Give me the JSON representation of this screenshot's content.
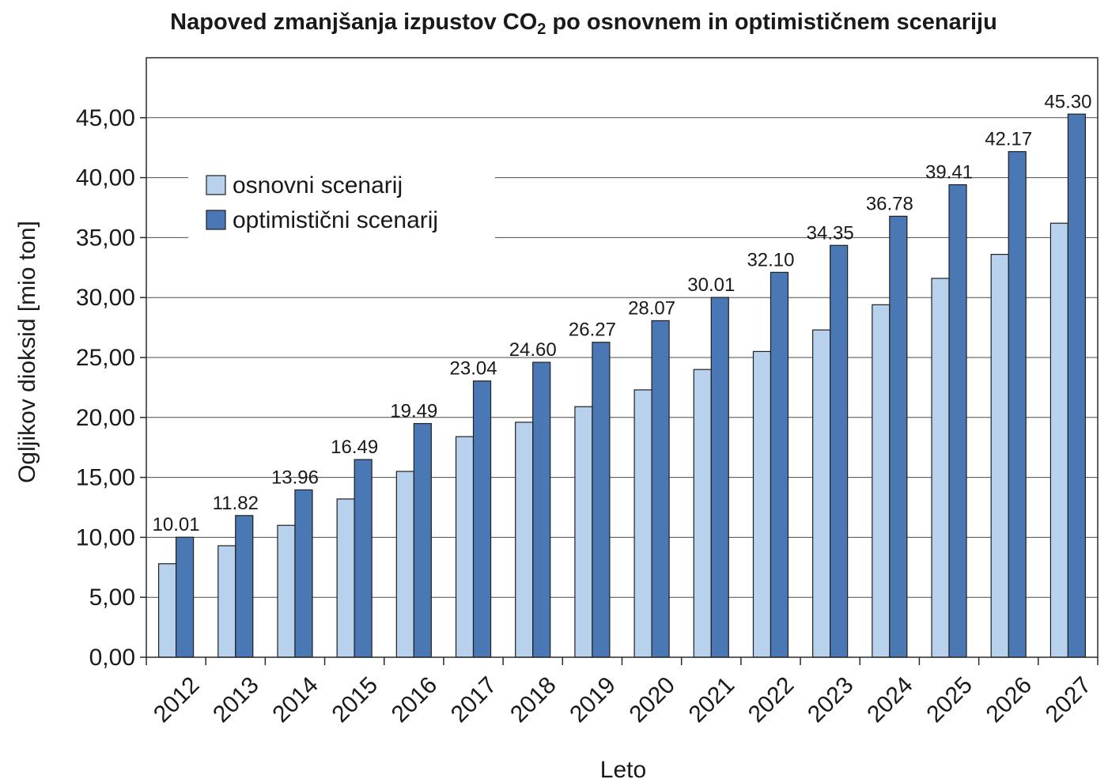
{
  "chart_data": {
    "type": "bar",
    "title_main": "Napoved zmanjšanja izpustov CO",
    "title_sub": "2",
    "title_rest": " po osnovnem in optimističnem scenariju",
    "xlabel": "Leto",
    "ylabel": "Ogljikov dioksid [mio ton]",
    "ylim": [
      0,
      50
    ],
    "ytick_values": [
      0,
      5,
      10,
      15,
      20,
      25,
      30,
      35,
      40,
      45
    ],
    "ytick_labels": [
      "0,00",
      "5,00",
      "10,00",
      "15,00",
      "20,00",
      "25,00",
      "30,00",
      "35,00",
      "40,00",
      "45,00"
    ],
    "grid": true,
    "legend_position": "top-left",
    "categories": [
      "2012",
      "2013",
      "2014",
      "2015",
      "2016",
      "2017",
      "2018",
      "2019",
      "2020",
      "2021",
      "2022",
      "2023",
      "2024",
      "2025",
      "2026",
      "2027"
    ],
    "series": [
      {
        "name": "osnovni scenarij",
        "color": "#b8d2ee",
        "values": [
          7.8,
          9.3,
          11.0,
          13.2,
          15.5,
          18.4,
          19.6,
          20.9,
          22.3,
          24.0,
          25.5,
          27.3,
          29.4,
          31.6,
          33.6,
          36.2
        ],
        "show_labels": false
      },
      {
        "name": "optimistični scenarij",
        "color": "#4a78b4",
        "values": [
          10.01,
          11.82,
          13.96,
          16.49,
          19.49,
          23.04,
          24.6,
          26.27,
          28.07,
          30.01,
          32.1,
          34.35,
          36.78,
          39.41,
          42.17,
          45.3
        ],
        "labels": [
          "10.01",
          "11.82",
          "13.96",
          "16.49",
          "19.49",
          "23.04",
          "24.60",
          "26.27",
          "28.07",
          "30.01",
          "32.10",
          "34.35",
          "36.78",
          "39.41",
          "42.17",
          "45.30"
        ],
        "show_labels": true
      }
    ]
  }
}
